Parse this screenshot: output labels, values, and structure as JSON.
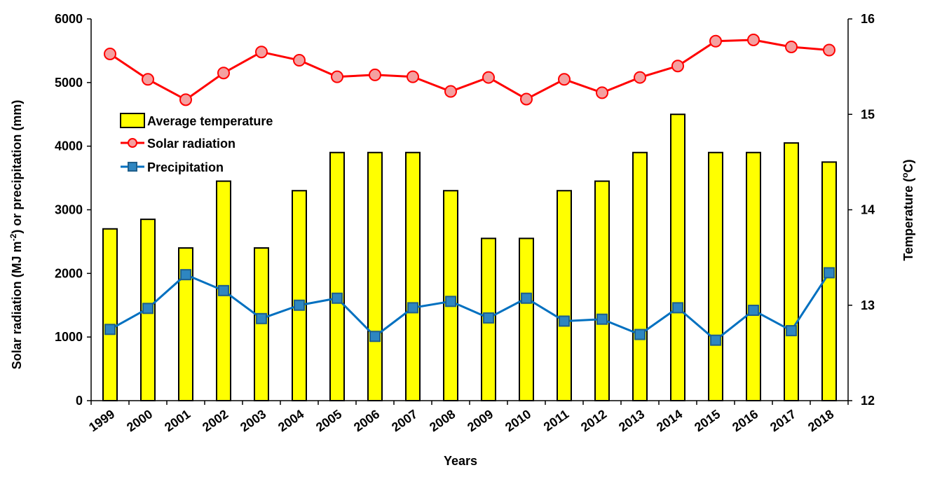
{
  "chart_data": {
    "type": "bar+line",
    "categories": [
      "1999",
      "2000",
      "2001",
      "2002",
      "2003",
      "2004",
      "2005",
      "2006",
      "2007",
      "2008",
      "2009",
      "2010",
      "2011",
      "2012",
      "2013",
      "2014",
      "2015",
      "2016",
      "2017",
      "2018"
    ],
    "series": [
      {
        "name": "Average temperature",
        "type": "bar",
        "axis": "right",
        "color": "#ffff00",
        "values": [
          13.8,
          13.9,
          13.6,
          14.3,
          13.6,
          14.2,
          14.6,
          14.6,
          14.6,
          14.2,
          13.7,
          13.7,
          14.2,
          14.3,
          14.6,
          15.0,
          14.6,
          14.6,
          14.7,
          14.5
        ]
      },
      {
        "name": "Solar radiation",
        "type": "line",
        "axis": "left",
        "color": "#ff0000",
        "values": [
          5450,
          5050,
          4730,
          5150,
          5480,
          5350,
          5090,
          5120,
          5090,
          4860,
          5080,
          4740,
          5050,
          4840,
          5080,
          5260,
          5650,
          5670,
          5560,
          5510
        ]
      },
      {
        "name": "Precipitation",
        "type": "line",
        "axis": "left",
        "color": "#0070c0",
        "values": [
          1120,
          1450,
          1980,
          1730,
          1290,
          1500,
          1610,
          1010,
          1460,
          1560,
          1300,
          1610,
          1250,
          1280,
          1040,
          1460,
          950,
          1420,
          1100,
          2010
        ]
      }
    ],
    "xlabel": "Years",
    "ylabel_left_prefix": "Solar radiation  (MJ m",
    "ylabel_left_sup": "-2",
    "ylabel_left_suffix": ") or precipitation (mm)",
    "ylabel_right_prefix": "Temperature (",
    "ylabel_right_sup": "o",
    "ylabel_right_suffix": "C)",
    "ylim_left": [
      0,
      6000
    ],
    "yticks_left": [
      0,
      1000,
      2000,
      3000,
      4000,
      5000,
      6000
    ],
    "ylim_right": [
      12,
      16
    ],
    "yticks_right": [
      12,
      13,
      14,
      15,
      16
    ],
    "legend_position": "top-left",
    "grid": false
  }
}
